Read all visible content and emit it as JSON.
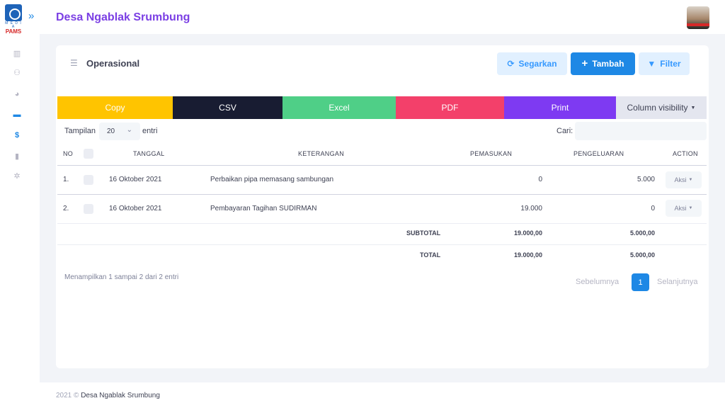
{
  "brand": {
    "logo_sub": "M E D I A",
    "logo_text": "PAMS"
  },
  "header": {
    "title": "Desa Ngablak Srumbung",
    "toggle_icon": "double-chevron-right-icon"
  },
  "sidebar": {
    "items": [
      {
        "icon": "chart-icon",
        "glyph": "▥",
        "active": false
      },
      {
        "icon": "users-icon",
        "glyph": "⚇",
        "active": false
      },
      {
        "icon": "dashboard-icon",
        "glyph": "◕",
        "active": false
      },
      {
        "icon": "card-icon",
        "glyph": "▬",
        "active": true
      },
      {
        "icon": "dollar-icon",
        "glyph": "$",
        "active": true
      },
      {
        "icon": "file-icon",
        "glyph": "▮",
        "active": false
      },
      {
        "icon": "gear-icon",
        "glyph": "✲",
        "active": false
      }
    ]
  },
  "card": {
    "title": "Operasional",
    "buttons": {
      "refresh": "Segarkan",
      "add": "Tambah",
      "filter": "Filter"
    }
  },
  "export": {
    "copy": "Copy",
    "csv": "CSV",
    "excel": "Excel",
    "pdf": "PDF",
    "print": "Print",
    "colvis": "Column visibility"
  },
  "length": {
    "label": "Tampilan",
    "value": "20",
    "suffix": "entri"
  },
  "search": {
    "label": "Cari:",
    "placeholder": ""
  },
  "table": {
    "headers": {
      "no": "NO",
      "date": "TANGGAL",
      "desc": "KETERANGAN",
      "income": "PEMASUKAN",
      "expense": "PENGELUARAN",
      "action": "ACTION"
    },
    "rows": [
      {
        "no": "1.",
        "date": "16 Oktober 2021",
        "desc": "Perbaikan pipa memasang sambungan",
        "income": "0",
        "expense": "5.000",
        "action": "Aksi"
      },
      {
        "no": "2.",
        "date": "16 Oktober 2021",
        "desc": "Pembayaran Tagihan SUDIRMAN",
        "income": "19.000",
        "expense": "0",
        "action": "Aksi"
      }
    ],
    "subtotal": {
      "label": "SUBTOTAL",
      "income": "19.000,00",
      "expense": "5.000,00"
    },
    "total": {
      "label": "TOTAL",
      "income": "19.000,00",
      "expense": "5.000,00"
    }
  },
  "pagination": {
    "info": "Menampilkan 1 sampai 2 dari 2 entri",
    "prev": "Sebelumnya",
    "current": "1",
    "next": "Selanjutnya"
  },
  "footer": {
    "year": "2021",
    "copyright": "©",
    "name": "Desa Ngablak Srumbung"
  }
}
